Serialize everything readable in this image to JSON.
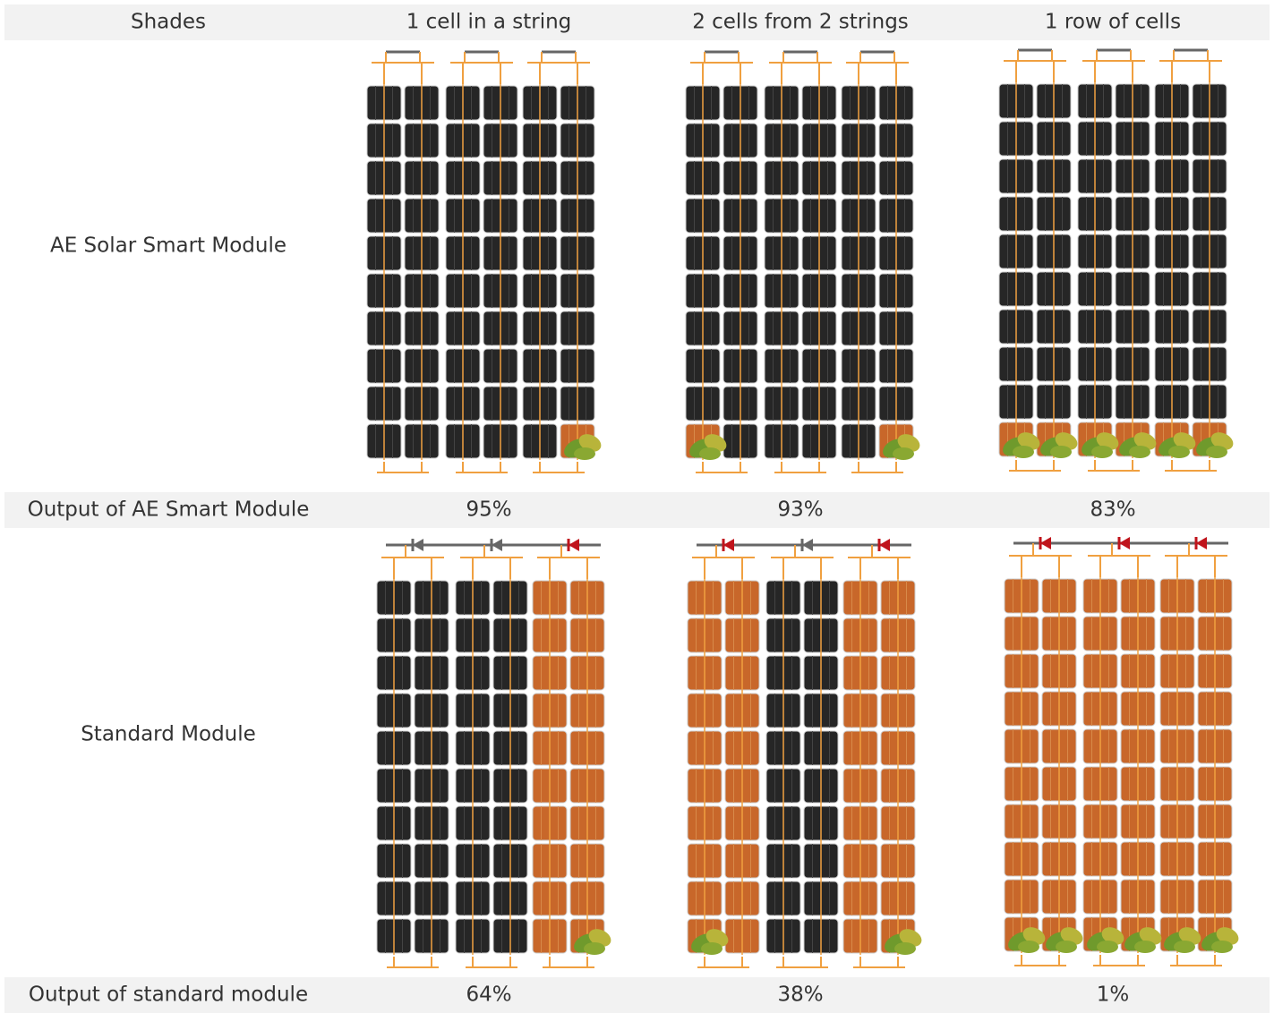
{
  "table": {
    "header": [
      "Shades",
      "1 cell in a string",
      "2 cells from 2 strings",
      "1 row of cells"
    ],
    "rows": [
      [
        "AE Solar Smart Module"
      ],
      [
        "Output of AE Smart Module",
        "95%",
        "93%",
        "83%"
      ],
      [
        "Standard Module"
      ],
      [
        "Output of standard module",
        "64%",
        "38%",
        "1%"
      ]
    ]
  }
}
